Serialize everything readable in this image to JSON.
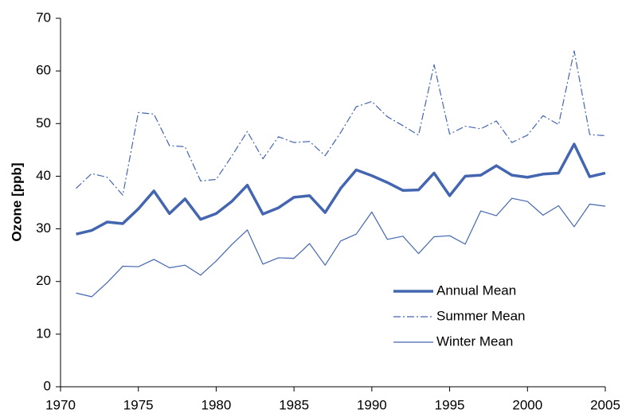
{
  "chart_data": {
    "type": "line",
    "ylabel": "Ozone [ppb]",
    "x": [
      1971,
      1972,
      1973,
      1974,
      1975,
      1976,
      1977,
      1978,
      1979,
      1980,
      1981,
      1982,
      1983,
      1984,
      1985,
      1986,
      1987,
      1988,
      1989,
      1990,
      1991,
      1992,
      1993,
      1994,
      1995,
      1996,
      1997,
      1998,
      1999,
      2000,
      2001,
      2002,
      2003,
      2004,
      2005
    ],
    "series": [
      {
        "name": "Annual Mean",
        "color": "#4466b0",
        "linewidth": 3.5,
        "linestyle": "solid",
        "values": [
          29,
          29.7,
          31.3,
          31,
          33.8,
          37.2,
          32.9,
          35.7,
          31.8,
          32.9,
          35.2,
          38.3,
          32.8,
          34,
          36,
          36.3,
          33.1,
          37.7,
          41.2,
          40.1,
          38.8,
          37.3,
          37.4,
          40.6,
          36.3,
          40,
          40.2,
          42,
          40.2,
          39.8,
          40.4,
          40.6,
          46.1,
          39.9,
          40.6
        ]
      },
      {
        "name": "Summer Mean",
        "color": "#4466b0",
        "linewidth": 1.2,
        "linestyle": "dashdot",
        "values": [
          37.7,
          40.5,
          39.8,
          36.4,
          52.1,
          51.8,
          45.8,
          45.6,
          39.1,
          39.4,
          43.8,
          48.5,
          43.3,
          47.5,
          46.4,
          46.6,
          43.9,
          48.3,
          53.2,
          54.2,
          51.3,
          49.6,
          47.8,
          61.2,
          48,
          49.5,
          49,
          50.5,
          46.4,
          47.8,
          51.5,
          49.8,
          63.8,
          47.9,
          47.7
        ]
      },
      {
        "name": "Winter Mean",
        "color": "#4466b0",
        "linewidth": 1.2,
        "linestyle": "solid",
        "values": [
          17.8,
          17.1,
          19.8,
          22.9,
          22.8,
          24.2,
          22.6,
          23.1,
          21.2,
          23.9,
          27,
          29.8,
          23.3,
          24.5,
          24.4,
          27.2,
          23.1,
          27.7,
          29,
          33.2,
          28,
          28.6,
          25.3,
          28.5,
          28.7,
          27.1,
          33.4,
          32.5,
          35.8,
          35.2,
          32.6,
          34.4,
          30.4,
          34.7,
          34.3
        ]
      }
    ],
    "xlim": [
      1970,
      2005
    ],
    "xticks": [
      1970,
      1975,
      1980,
      1985,
      1990,
      1995,
      2000,
      2005
    ],
    "ylim": [
      0,
      70
    ],
    "yticks": [
      0,
      10,
      20,
      30,
      40,
      50,
      60,
      70
    ],
    "grid": false,
    "legend": "lower right"
  }
}
